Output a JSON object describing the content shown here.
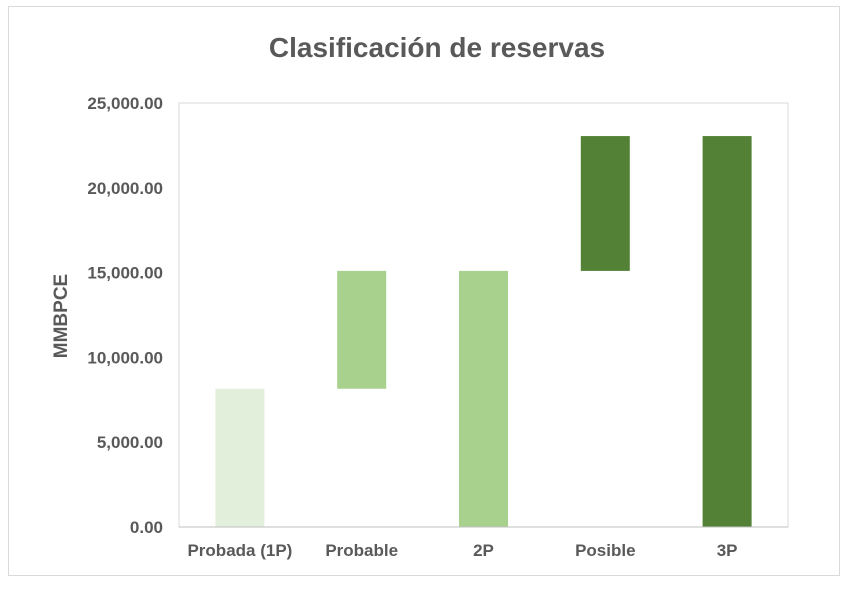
{
  "chart_data": {
    "type": "bar",
    "subtype": "waterfall",
    "title": "Clasificación de reservas",
    "ylabel": "MMBPCE",
    "xlabel": "",
    "ylim": [
      0,
      25000
    ],
    "yticks": [
      "0.00",
      "5,000.00",
      "10,000.00",
      "15,000.00",
      "20,000.00",
      "25,000.00"
    ],
    "ytick_values": [
      0,
      5000,
      10000,
      15000,
      20000,
      25000
    ],
    "grid": false,
    "legend": "none",
    "categories": [
      "Probada (1P)",
      "Probable",
      "2P",
      "Posible",
      "3P"
    ],
    "bars": [
      {
        "category": "Probada (1P)",
        "start": 0,
        "end": 8150,
        "color": "#e2efda"
      },
      {
        "category": "Probable",
        "start": 8150,
        "end": 15100,
        "color": "#a9d18e"
      },
      {
        "category": "2P",
        "start": 0,
        "end": 15100,
        "color": "#a9d18e"
      },
      {
        "category": "Posible",
        "start": 15100,
        "end": 23050,
        "color": "#538135"
      },
      {
        "category": "3P",
        "start": 0,
        "end": 23050,
        "color": "#538135"
      }
    ]
  }
}
